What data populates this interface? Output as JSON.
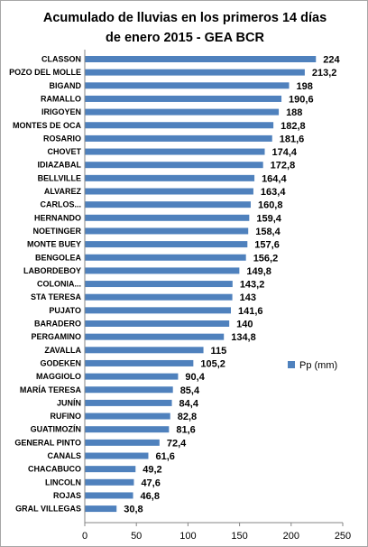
{
  "chart_data": {
    "type": "bar",
    "orientation": "horizontal",
    "title_lines": [
      "Acumulado de lluvias en los primeros 14 días",
      "de enero 2015 - GEA BCR"
    ],
    "categories": [
      "CLASSON",
      "POZO DEL MOLLE",
      "BIGAND",
      "RAMALLO",
      "IRIGOYEN",
      "MONTES DE OCA",
      "ROSARIO",
      "CHOVET",
      "IDIAZABAL",
      "BELLVILLE",
      "ALVAREZ",
      "CARLOS...",
      "HERNANDO",
      "NOETINGER",
      "MONTE BUEY",
      "BENGOLEA",
      "LABORDEBOY",
      "COLONIA...",
      "STA TERESA",
      "PUJATO",
      "BARADERO",
      "PERGAMINO",
      "ZAVALLA",
      "GODEKEN",
      "MAGGIOLO",
      "MARÍA TERESA",
      "JUNÍN",
      "RUFINO",
      "GUATIMOZÍN",
      "GENERAL PINTO",
      "CANALS",
      "CHACABUCO",
      "LINCOLN",
      "ROJAS",
      "GRAL VILLEGAS"
    ],
    "value_labels": [
      "224",
      "213,2",
      "198",
      "190,6",
      "188",
      "182,8",
      "181,6",
      "174,4",
      "172,8",
      "164,4",
      "163,4",
      "160,8",
      "159,4",
      "158,4",
      "157,6",
      "156,2",
      "149,8",
      "143,2",
      "143",
      "141,6",
      "140",
      "134,8",
      "115",
      "105,2",
      "90,4",
      "85,4",
      "84,4",
      "82,8",
      "81,6",
      "72,4",
      "61,6",
      "49,2",
      "47,6",
      "46,8",
      "30,8"
    ],
    "series": [
      {
        "name": "Pp (mm)",
        "color": "#4f81bd",
        "values": [
          224,
          213.2,
          198,
          190.6,
          188,
          182.8,
          181.6,
          174.4,
          172.8,
          164.4,
          163.4,
          160.8,
          159.4,
          158.4,
          157.6,
          156.2,
          149.8,
          143.2,
          143,
          141.6,
          140,
          134.8,
          115,
          105.2,
          90.4,
          85.4,
          84.4,
          82.8,
          81.6,
          72.4,
          61.6,
          49.2,
          47.6,
          46.8,
          30.8
        ]
      }
    ],
    "xlim": [
      0,
      250
    ],
    "x_ticks": [
      "0",
      "50",
      "100",
      "150",
      "200",
      "250"
    ],
    "grid": false,
    "legend_position": "right"
  }
}
